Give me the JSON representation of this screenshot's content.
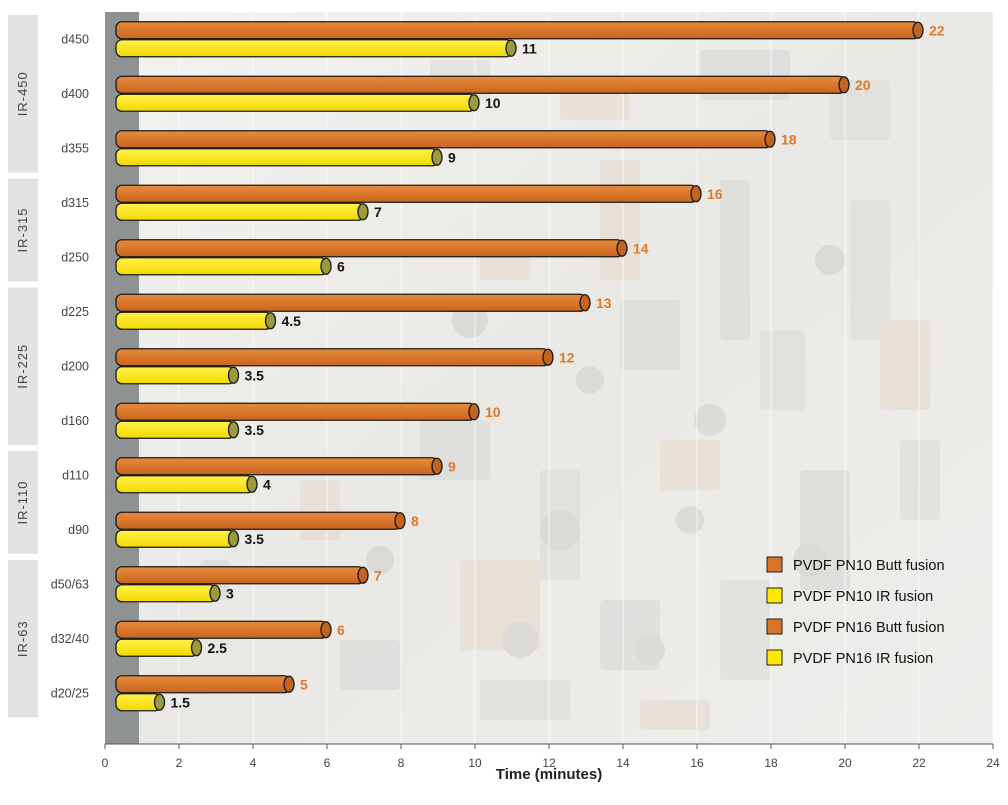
{
  "chart_data": {
    "type": "bar",
    "orientation": "horizontal",
    "xlabel": "Time (minutes)",
    "xlim": [
      0,
      24
    ],
    "xticks": [
      0,
      2,
      4,
      6,
      8,
      10,
      12,
      14,
      16,
      18,
      20,
      22,
      24
    ],
    "groups": [
      {
        "name": "IR-450",
        "categories": [
          "d450",
          "d400",
          "d355"
        ]
      },
      {
        "name": "IR-315",
        "categories": [
          "d315",
          "d250"
        ]
      },
      {
        "name": "IR-225",
        "categories": [
          "d225",
          "d200",
          "d160"
        ]
      },
      {
        "name": "IR-110",
        "categories": [
          "d110",
          "d90"
        ]
      },
      {
        "name": "IR-63",
        "categories": [
          "d50/63",
          "d32/40",
          "d20/25"
        ]
      }
    ],
    "categories": [
      "d450",
      "d400",
      "d355",
      "d315",
      "d250",
      "d225",
      "d200",
      "d160",
      "d110",
      "d90",
      "d50/63",
      "d32/40",
      "d20/25"
    ],
    "series": [
      {
        "name": "Butt fusion",
        "color": "#d9742b",
        "label_color": "#e07a2a",
        "values": [
          22,
          20,
          18,
          16,
          14,
          13,
          12,
          10,
          9,
          8,
          7,
          6,
          5
        ]
      },
      {
        "name": "IR fusion",
        "color": "#ffe800",
        "label_color": "#111111",
        "values": [
          11,
          10,
          9,
          7,
          6,
          4.5,
          3.5,
          3.5,
          4,
          3.5,
          3,
          2.5,
          1.5
        ]
      }
    ],
    "legend": {
      "position": "bottom-right",
      "entries": [
        {
          "label": "PVDF PN10 Butt fusion",
          "color": "#d9742b"
        },
        {
          "label": "PVDF PN10 IR fusion",
          "color": "#ffe800"
        },
        {
          "label": "PVDF PN16 Butt fusion",
          "color": "#d9742b"
        },
        {
          "label": "PVDF PN16 IR fusion",
          "color": "#ffe800"
        }
      ]
    },
    "grid": true
  }
}
